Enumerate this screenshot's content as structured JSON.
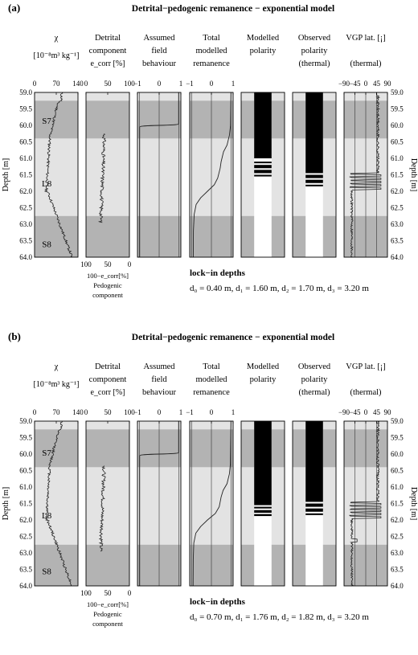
{
  "panels": [
    {
      "label": "(a)",
      "title": "Detrital−pedogenic remanence − exponential model",
      "lock_heading": "lock−in depths",
      "lock_values": "d₀ = 0.40 m, d₁ = 1.60 m, d₂ = 1.70 m, d₃ = 3.20 m",
      "lockin_m": [
        0.4,
        1.6,
        1.7,
        3.2
      ],
      "bands": [
        {
          "label": "S7",
          "from": 59.25,
          "to": 60.4,
          "color": "#b3b3b3",
          "label_depth": 59.85
        },
        {
          "label": "L8",
          "from": 60.4,
          "to": 62.75,
          "color": "#e3e3e3",
          "label_depth": 61.75
        },
        {
          "label": "S8",
          "from": 62.75,
          "to": 64.0,
          "color": "#b3b3b3",
          "label_depth": 63.6
        }
      ],
      "field_transition_depth": 60.0,
      "remanence": [
        [
          59.0,
          1.0
        ],
        [
          60.0,
          0.98
        ],
        [
          60.3,
          0.92
        ],
        [
          60.6,
          0.8
        ],
        [
          60.8,
          0.62
        ],
        [
          61.1,
          0.5
        ],
        [
          61.3,
          0.45
        ],
        [
          61.6,
          0.32
        ],
        [
          61.8,
          0.15
        ],
        [
          62.0,
          -0.2
        ],
        [
          62.2,
          -0.55
        ],
        [
          62.4,
          -0.78
        ],
        [
          62.7,
          -0.88
        ],
        [
          63.2,
          -0.92
        ],
        [
          64.0,
          -0.93
        ]
      ],
      "model_black": [
        [
          59.0,
          61.0
        ],
        [
          61.1,
          61.15
        ],
        [
          61.2,
          61.3
        ],
        [
          61.35,
          61.45
        ],
        [
          61.5,
          61.55
        ]
      ],
      "model_white_from": 61.6,
      "obs_black": [
        [
          59.0,
          61.45
        ],
        [
          61.5,
          61.6
        ],
        [
          61.65,
          61.75
        ],
        [
          61.8,
          61.85
        ]
      ],
      "obs_white_from": 61.9,
      "vgp_flips": [
        61.5,
        61.6,
        61.7,
        61.8,
        61.9
      ]
    },
    {
      "label": "(b)",
      "title": "Detrital−pedogenic remanence −  exponential model",
      "lock_heading": "lock−in depths",
      "lock_values": "d₀ = 0.70 m, d₁ = 1.76 m, d₂ = 1.82 m, d₃ =  3.20 m",
      "lockin_m": [
        0.7,
        1.76,
        1.82,
        3.2
      ],
      "bands": [
        {
          "label": "S7",
          "from": 59.25,
          "to": 60.4,
          "color": "#b3b3b3",
          "label_depth": 59.95
        },
        {
          "label": "L8",
          "from": 60.4,
          "to": 62.75,
          "color": "#e3e3e3",
          "label_depth": 61.85
        },
        {
          "label": "S8",
          "from": 62.75,
          "to": 64.0,
          "color": "#b3b3b3",
          "label_depth": 63.55
        }
      ],
      "field_transition_depth": 60.0,
      "remanence": [
        [
          59.0,
          1.0
        ],
        [
          60.3,
          0.97
        ],
        [
          60.6,
          0.92
        ],
        [
          60.9,
          0.8
        ],
        [
          61.1,
          0.6
        ],
        [
          61.3,
          0.5
        ],
        [
          61.6,
          0.4
        ],
        [
          61.8,
          0.2
        ],
        [
          62.0,
          -0.2
        ],
        [
          62.2,
          -0.55
        ],
        [
          62.4,
          -0.8
        ],
        [
          62.7,
          -0.9
        ],
        [
          63.2,
          -0.93
        ],
        [
          64.0,
          -0.94
        ]
      ],
      "model_black": [
        [
          59.0,
          61.55
        ],
        [
          61.6,
          61.65
        ],
        [
          61.7,
          61.78
        ],
        [
          61.82,
          61.88
        ]
      ],
      "model_white_from": 61.9,
      "obs_black": [
        [
          59.0,
          61.45
        ],
        [
          61.5,
          61.6
        ],
        [
          61.65,
          61.75
        ],
        [
          61.8,
          61.85
        ]
      ],
      "obs_white_from": 61.9,
      "vgp_flips": [
        61.5,
        61.6,
        61.7,
        61.8,
        61.9,
        62.6,
        62.65
      ]
    }
  ],
  "columns": [
    {
      "title_lines": [
        "χ"
      ],
      "unit": "[10⁻⁸m³ kg⁻¹]",
      "ticks": [
        "0",
        "70",
        "140"
      ]
    },
    {
      "title_lines": [
        "Detrital",
        "component"
      ],
      "unit": "e_corr [%]",
      "ticks": [
        "0",
        "50",
        "100"
      ],
      "bottom_ticks": [
        "100",
        "50",
        "0"
      ],
      "bottom_label": [
        "100−e_corr[%]",
        "Pedogenic",
        "component"
      ]
    },
    {
      "title_lines": [
        "Assumed",
        "field",
        "behaviour"
      ],
      "ticks": [
        "−1",
        "0",
        "1"
      ]
    },
    {
      "title_lines": [
        "Total",
        "modelled",
        "remanence"
      ],
      "ticks": [
        "−1",
        "0",
        "1"
      ]
    },
    {
      "title_lines": [
        "Modelled",
        "polarity"
      ]
    },
    {
      "title_lines": [
        "Observed",
        "polarity",
        "(thermal)"
      ]
    },
    {
      "title_lines": [
        "VGP lat.  [¡]",
        "",
        "(thermal)"
      ],
      "ticks": [
        "−90",
        "−45",
        "0",
        "45",
        "90"
      ]
    }
  ],
  "depth_axis": {
    "label": "Depth  [m]",
    "range": [
      59.0,
      64.0
    ],
    "ticks": [
      "59.0",
      "59.5",
      "60.0",
      "60.5",
      "61.0",
      "61.5",
      "62.0",
      "62.5",
      "63.0",
      "63.5",
      "64.0"
    ]
  },
  "chart_data": [
    {
      "type": "line",
      "title": "Detrital−pedogenic remanence − exponential model",
      "ylabel": "Depth  [m]",
      "ylim": [
        64.0,
        59.0
      ],
      "series": [
        {
          "name": "Total modelled remanence",
          "x": [
            1.0,
            0.98,
            0.92,
            0.8,
            0.62,
            0.5,
            0.45,
            0.32,
            0.15,
            -0.2,
            -0.55,
            -0.78,
            -0.88,
            -0.92,
            -0.93
          ],
          "y": [
            59.0,
            60.0,
            60.3,
            60.6,
            60.8,
            61.1,
            61.3,
            61.6,
            61.8,
            62.0,
            62.2,
            62.4,
            62.7,
            63.2,
            64.0
          ]
        }
      ],
      "lock_in_depths_m": [
        0.4,
        1.6,
        1.7,
        3.2
      ]
    },
    {
      "type": "line",
      "title": "Detrital−pedogenic remanence −  exponential model",
      "ylabel": "Depth  [m]",
      "ylim": [
        64.0,
        59.0
      ],
      "series": [
        {
          "name": "Total modelled remanence",
          "x": [
            1.0,
            0.97,
            0.92,
            0.8,
            0.6,
            0.5,
            0.4,
            0.2,
            -0.2,
            -0.55,
            -0.8,
            -0.9,
            -0.93,
            -0.94
          ],
          "y": [
            59.0,
            60.3,
            60.6,
            60.9,
            61.1,
            61.3,
            61.6,
            61.8,
            62.0,
            62.2,
            62.4,
            62.7,
            63.2,
            64.0
          ]
        }
      ],
      "lock_in_depths_m": [
        0.7,
        1.76,
        1.82,
        3.2
      ]
    }
  ]
}
